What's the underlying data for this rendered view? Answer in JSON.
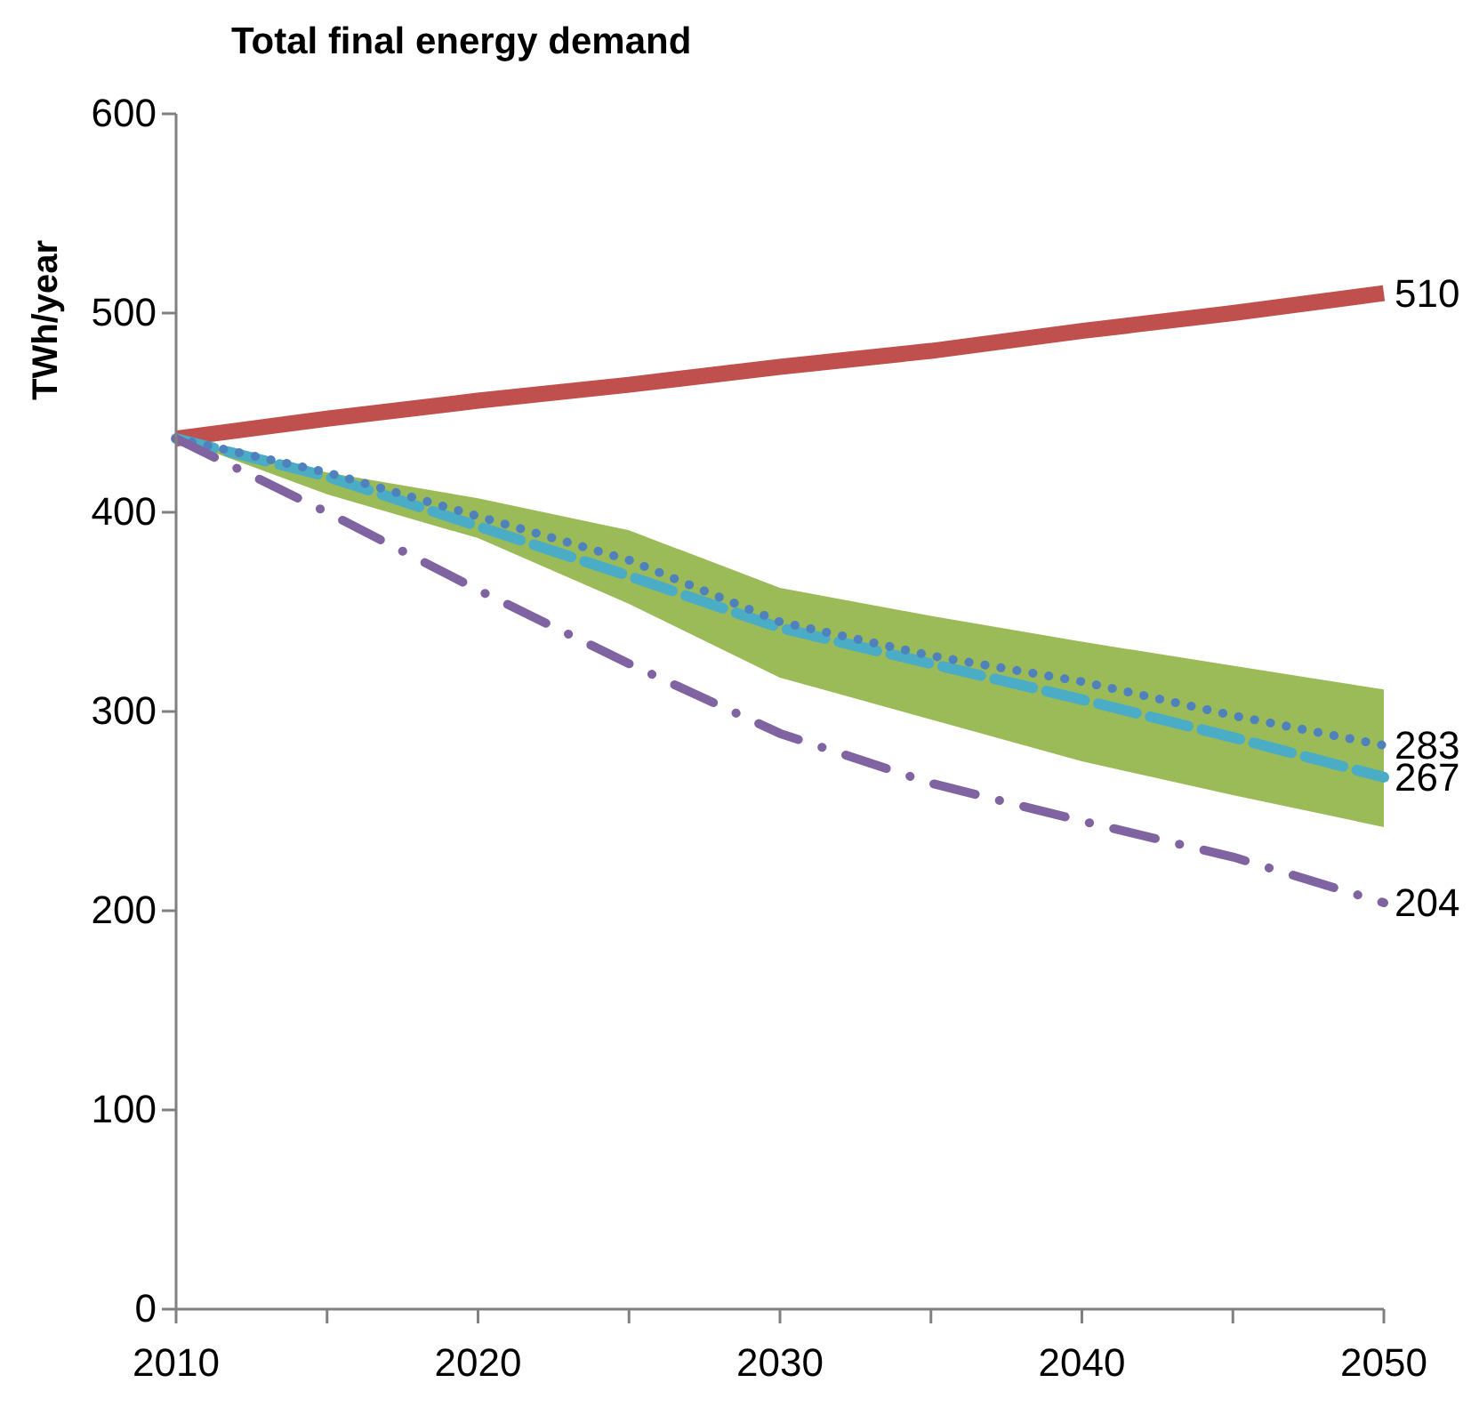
{
  "chart_data": {
    "type": "line",
    "title": "Total final energy demand",
    "ylabel": "TWh/year",
    "x": [
      2010,
      2015,
      2020,
      2025,
      2030,
      2035,
      2040,
      2045,
      2050
    ],
    "xlim": [
      2010,
      2050
    ],
    "xticks": [
      2010,
      {
        "value": 2015,
        "label": null
      },
      2020,
      {
        "value": 2025,
        "label": null
      },
      2030,
      {
        "value": 2035,
        "label": null
      },
      2040,
      {
        "value": 2045,
        "label": null
      },
      2050
    ],
    "ylim": [
      0,
      600
    ],
    "yticks": [
      0,
      100,
      200,
      300,
      400,
      500,
      600
    ],
    "grid": false,
    "marker": "none",
    "series": [
      {
        "color": "#c0504d",
        "line_style": "solid",
        "values": [
          437,
          447,
          456,
          464,
          473,
          481,
          491,
          500,
          510
        ],
        "value_labels": [
          null,
          null,
          null,
          null,
          null,
          null,
          null,
          null,
          "510"
        ]
      },
      {
        "color": "#4bacc6",
        "line_style": "dashed",
        "values": [
          437,
          418,
          393,
          368,
          342,
          324,
          306,
          287,
          267
        ],
        "value_labels": [
          null,
          null,
          null,
          null,
          null,
          null,
          null,
          null,
          "267"
        ],
        "upper": [
          437,
          420,
          407,
          391,
          362,
          348,
          335,
          323,
          311
        ],
        "lower": [
          437,
          409,
          387,
          354,
          317,
          296,
          275,
          258,
          242
        ]
      },
      {
        "color": "#4f81bd",
        "line_style": "dotted",
        "values": [
          437,
          420,
          398,
          376,
          345,
          328,
          315,
          298,
          283
        ],
        "value_labels": [
          null,
          null,
          null,
          null,
          null,
          null,
          null,
          null,
          "283"
        ]
      },
      {
        "color": "#8064a2",
        "line_style": "dashdot",
        "values": [
          437,
          400,
          361,
          324,
          289,
          264,
          245,
          227,
          204
        ],
        "value_labels": [
          null,
          null,
          null,
          null,
          null,
          null,
          null,
          null,
          "204"
        ]
      }
    ]
  }
}
